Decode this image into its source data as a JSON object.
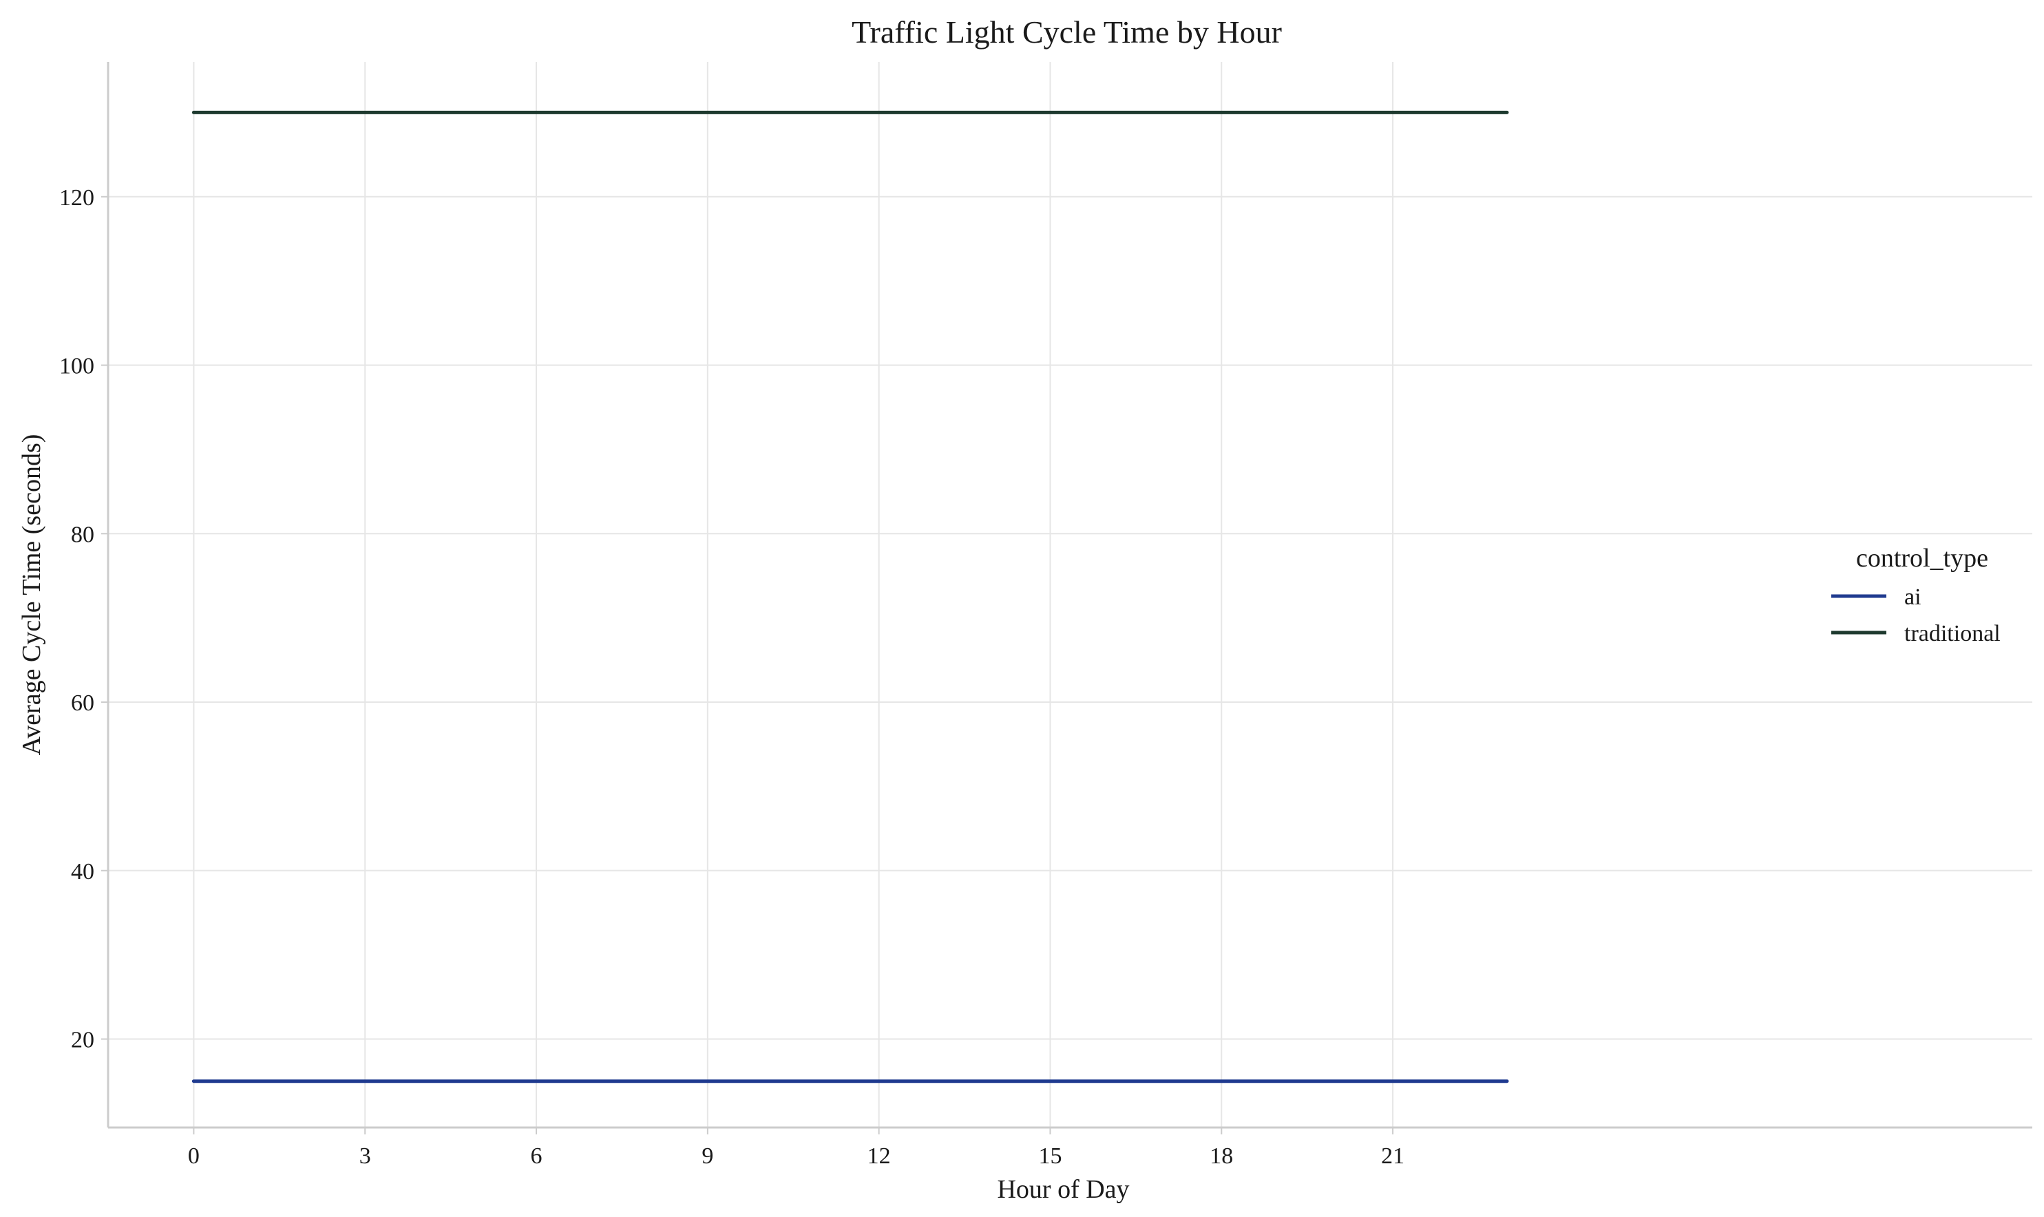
{
  "chart_data": {
    "type": "line",
    "title": "Traffic Light Cycle Time by Hour",
    "xlabel": "Hour of Day",
    "ylabel": "Average Cycle Time (seconds)",
    "xlim": [
      -1.5,
      32.2
    ],
    "ylim": [
      9.5,
      136.0
    ],
    "xticks": [
      0,
      3,
      6,
      9,
      12,
      15,
      18,
      21
    ],
    "yticks": [
      20,
      40,
      60,
      80,
      100,
      120
    ],
    "grid": true,
    "legend": {
      "title": "control_type",
      "placement": "center-right"
    },
    "x": [
      0,
      1,
      2,
      3,
      4,
      5,
      6,
      7,
      8,
      9,
      10,
      11,
      12,
      13,
      14,
      15,
      16,
      17,
      18,
      19,
      20,
      21,
      22,
      23
    ],
    "series": [
      {
        "name": "ai",
        "color": "#1f3a8f",
        "values": [
          15,
          15,
          15,
          15,
          15,
          15,
          15,
          15,
          15,
          15,
          15,
          15,
          15,
          15,
          15,
          15,
          15,
          15,
          15,
          15,
          15,
          15,
          15,
          15
        ]
      },
      {
        "name": "traditional",
        "color": "#1e3a2f",
        "values": [
          130,
          130,
          130,
          130,
          130,
          130,
          130,
          130,
          130,
          130,
          130,
          130,
          130,
          130,
          130,
          130,
          130,
          130,
          130,
          130,
          130,
          130,
          130,
          130
        ]
      }
    ]
  }
}
